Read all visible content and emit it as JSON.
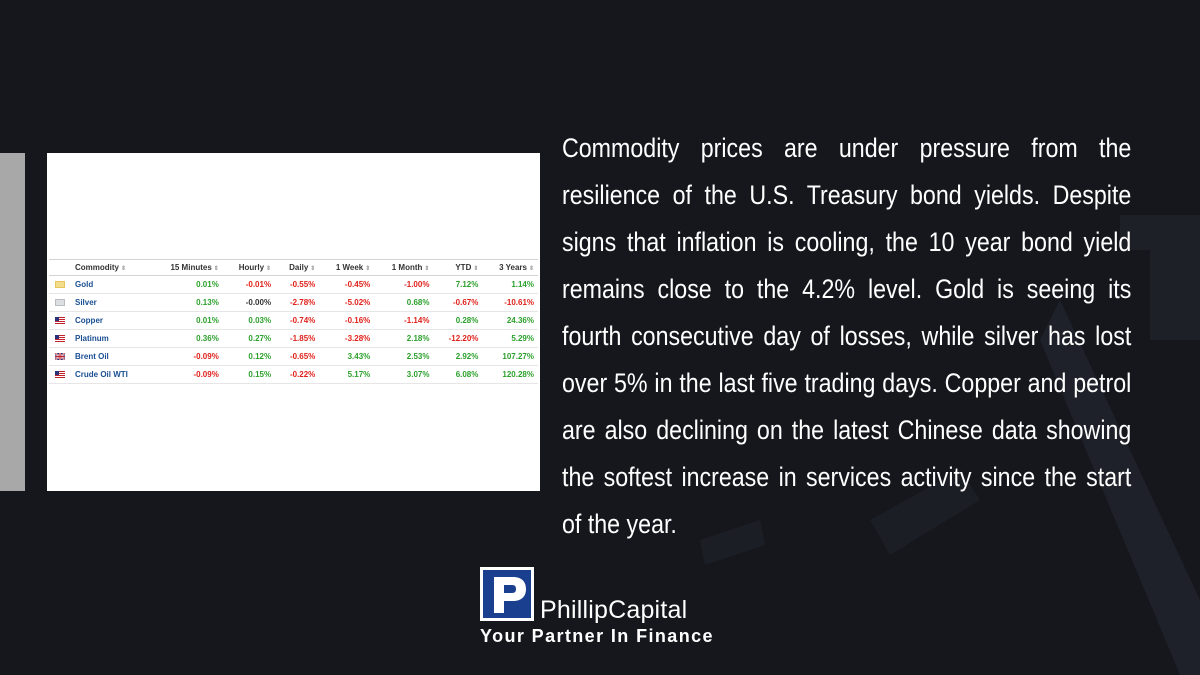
{
  "table": {
    "headers": [
      "Commodity",
      "15 Minutes",
      "Hourly",
      "Daily",
      "1 Week",
      "1 Month",
      "YTD",
      "3 Years"
    ],
    "rows": [
      {
        "flag": "gold-flag-icon",
        "name": "Gold",
        "values": [
          "0.01%",
          "-0.01%",
          "-0.55%",
          "-0.45%",
          "-1.00%",
          "7.12%",
          "1.14%"
        ]
      },
      {
        "flag": "silver-flag-icon",
        "name": "Silver",
        "values": [
          "0.13%",
          "-0.00%",
          "-2.78%",
          "-5.02%",
          "0.68%",
          "-0.67%",
          "-10.61%"
        ]
      },
      {
        "flag": "us-flag-icon",
        "name": "Copper",
        "values": [
          "0.01%",
          "0.03%",
          "-0.74%",
          "-0.16%",
          "-1.14%",
          "0.28%",
          "24.36%"
        ]
      },
      {
        "flag": "us-flag-icon",
        "name": "Platinum",
        "values": [
          "0.36%",
          "0.27%",
          "-1.85%",
          "-3.28%",
          "2.18%",
          "-12.20%",
          "5.29%"
        ]
      },
      {
        "flag": "uk-flag-icon",
        "name": "Brent Oil",
        "values": [
          "-0.09%",
          "0.12%",
          "-0.65%",
          "3.43%",
          "2.53%",
          "2.92%",
          "107.27%"
        ]
      },
      {
        "flag": "us-flag-icon",
        "name": "Crude Oil WTI",
        "values": [
          "-0.09%",
          "0.15%",
          "-0.22%",
          "5.17%",
          "3.07%",
          "6.08%",
          "120.28%"
        ]
      }
    ]
  },
  "commentary": "Commodity prices are under pressure from the resilience of the U.S. Treasury bond yields. Despite signs that inflation is cooling, the 10 year bond yield remains close to the 4.2% level. Gold is seeing its fourth consecutive day of losses, while silver has lost over 5% in the last five trading days. Copper and petrol are also declining on the latest Chinese data showing the softest increase in services activity since the start of the year.",
  "brand": {
    "name": "PhillipCapital",
    "tagline": "Your Partner In Finance"
  },
  "colors": {
    "background": "#15171d",
    "positive": "#2ca02c",
    "negative": "#e0211b",
    "link": "#1a4f93",
    "logo_blue": "#1b3f8f"
  }
}
